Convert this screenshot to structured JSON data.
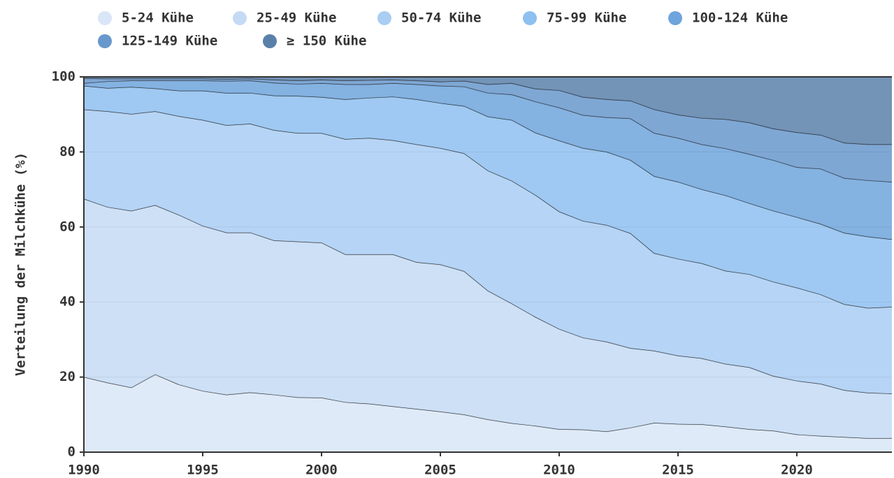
{
  "chart_data": {
    "type": "stacked_area",
    "y_axis_label": "Verteilung der Milchkühe (%)",
    "x": [
      1990,
      1991,
      1992,
      1993,
      1994,
      1995,
      1996,
      1997,
      1998,
      1999,
      2000,
      2001,
      2002,
      2003,
      2004,
      2005,
      2006,
      2007,
      2008,
      2009,
      2010,
      2011,
      2012,
      2013,
      2014,
      2015,
      2016,
      2017,
      2018,
      2019,
      2020,
      2021,
      2022,
      2023,
      2024
    ],
    "xlim": [
      1990,
      2024
    ],
    "xticks": [
      1990,
      1995,
      2000,
      2005,
      2010,
      2015,
      2020
    ],
    "ylim": [
      0,
      100
    ],
    "yticks": [
      0,
      20,
      40,
      60,
      80,
      100
    ],
    "grid": true,
    "legend": "top",
    "series": [
      {
        "name": "5-24 Kühe",
        "color": "#d9e6f7",
        "values": [
          20,
          18.5,
          17.2,
          20.7,
          18,
          16.3,
          15.3,
          15.9,
          15.3,
          14.6,
          14.5,
          13.3,
          12.9,
          12.2,
          11.5,
          10.8,
          10,
          8.7,
          7.7,
          7,
          6.1,
          6,
          5.5,
          6.5,
          7.8,
          7.5,
          7.4,
          6.8,
          6.1,
          5.7,
          4.7,
          4.3,
          4,
          3.7,
          3.7
        ]
      },
      {
        "name": "25-49 Kühe",
        "color": "#c4daf5",
        "values": [
          47.5,
          46.8,
          47.1,
          45.1,
          45.2,
          44,
          43.2,
          42.6,
          41.1,
          41.5,
          41.3,
          39.4,
          39.8,
          40.5,
          39.1,
          39.2,
          38.2,
          34.3,
          31.9,
          29,
          26.7,
          24.5,
          23.9,
          21.2,
          19.2,
          18.2,
          17.6,
          16.7,
          16.5,
          14.6,
          14.3,
          13.9,
          12.5,
          12.1,
          11.9
        ]
      },
      {
        "name": "50-74 Kühe",
        "color": "#a9cdf3",
        "values": [
          23.8,
          25.5,
          25.8,
          25,
          26.3,
          28.2,
          28.6,
          29,
          29.4,
          28.9,
          29.2,
          30.7,
          31,
          30.4,
          31.4,
          31,
          31.4,
          32,
          32.7,
          32.5,
          31.3,
          31.1,
          31.1,
          30.6,
          26,
          25.8,
          25.3,
          24.8,
          24.8,
          25.1,
          24.8,
          23.8,
          22.9,
          22.6,
          23.1
        ]
      },
      {
        "name": "75-99 Kühe",
        "color": "#8ec0f0",
        "values": [
          6.3,
          6.2,
          7.2,
          6.1,
          6.8,
          7.8,
          8.6,
          8.2,
          9.2,
          9.9,
          9.6,
          10.6,
          10.7,
          11.6,
          12,
          12,
          12.6,
          14.4,
          16.2,
          16.6,
          18.9,
          19.4,
          19.5,
          19.5,
          20.5,
          20.5,
          19.7,
          20.1,
          18.9,
          18.9,
          18.8,
          18.8,
          19,
          19,
          18
        ]
      },
      {
        "name": "100-124 Kühe",
        "color": "#6fa5dc",
        "values": [
          0.7,
          1.8,
          1.7,
          2.1,
          2.7,
          2.7,
          3.2,
          3.3,
          3.4,
          3.2,
          3.7,
          4,
          3.6,
          3.6,
          4,
          4.6,
          5.2,
          6.3,
          6.8,
          8.3,
          8.8,
          8.8,
          9.2,
          11.1,
          11.5,
          11.7,
          12,
          12.5,
          13.1,
          13.5,
          13.3,
          14.7,
          14.6,
          15,
          15.3
        ]
      },
      {
        "name": "125-149 Kühe",
        "color": "#6898cc",
        "values": [
          1.3,
          0.7,
          0.5,
          0.5,
          0.5,
          0.5,
          0.5,
          0.5,
          0.8,
          0.9,
          0.9,
          1,
          1.1,
          0.9,
          1,
          1.1,
          1.5,
          2.3,
          3,
          3.4,
          4.6,
          4.8,
          4.8,
          4.7,
          6.3,
          6.2,
          7,
          7.8,
          8.4,
          8.4,
          9.3,
          9,
          9.4,
          9.6,
          10
        ]
      },
      {
        "name": "≥ 150 Kühe",
        "color": "#5a80aa",
        "values": [
          0.4,
          0.5,
          0.5,
          0.5,
          0.5,
          0.5,
          0.6,
          0.5,
          0.8,
          1,
          0.8,
          1,
          0.9,
          0.8,
          1,
          1.3,
          1.1,
          2,
          1.7,
          3.2,
          3.6,
          5.4,
          6,
          6.4,
          8.7,
          10.1,
          11,
          11.3,
          12.2,
          13.8,
          14.8,
          15.5,
          17.6,
          18,
          18
        ]
      }
    ]
  }
}
